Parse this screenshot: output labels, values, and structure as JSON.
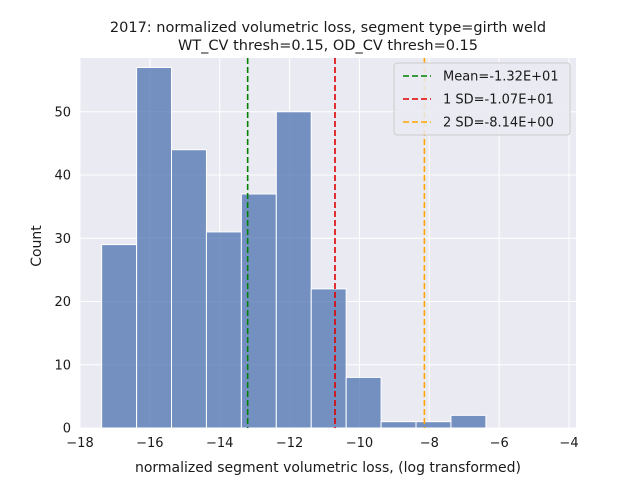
{
  "chart_data": {
    "type": "bar",
    "title_line1": "2017: normalized volumetric loss, segment type=girth weld",
    "title_line2": "WT_CV thresh=0.15, OD_CV thresh=0.15",
    "xlabel": "normalized segment volumetric loss, (log transformed)",
    "ylabel": "Count",
    "xlim": [
      -18,
      -3.8
    ],
    "ylim": [
      0,
      58.5
    ],
    "xticks": [
      -18,
      -16,
      -14,
      -12,
      -10,
      -8,
      -6,
      -4
    ],
    "xtick_labels": [
      "−18",
      "−16",
      "−14",
      "−12",
      "−10",
      "−8",
      "−6",
      "−4"
    ],
    "yticks": [
      0,
      10,
      20,
      30,
      40,
      50
    ],
    "ytick_labels": [
      "0",
      "10",
      "20",
      "30",
      "40",
      "50"
    ],
    "grid": true,
    "bins": [
      {
        "x0": -17.38,
        "x1": -16.38,
        "count": 29
      },
      {
        "x0": -16.38,
        "x1": -15.38,
        "count": 57
      },
      {
        "x0": -15.38,
        "x1": -14.38,
        "count": 44
      },
      {
        "x0": -14.38,
        "x1": -13.38,
        "count": 31
      },
      {
        "x0": -13.38,
        "x1": -12.38,
        "count": 37
      },
      {
        "x0": -12.38,
        "x1": -11.38,
        "count": 50
      },
      {
        "x0": -11.38,
        "x1": -10.38,
        "count": 22
      },
      {
        "x0": -10.38,
        "x1": -9.38,
        "count": 8
      },
      {
        "x0": -9.38,
        "x1": -8.38,
        "count": 1
      },
      {
        "x0": -8.38,
        "x1": -7.38,
        "count": 1
      },
      {
        "x0": -7.38,
        "x1": -6.38,
        "count": 2
      }
    ],
    "vlines": [
      {
        "label": "Mean=-1.32E+01",
        "x": -13.2,
        "color": "#008000"
      },
      {
        "label": "1 SD=-1.07E+01",
        "x": -10.7,
        "color": "#e00000"
      },
      {
        "label": "2 SD=-8.14E+00",
        "x": -8.14,
        "color": "#ffa500"
      }
    ],
    "legend_position": "top-right",
    "bar_color": "#4c72b0"
  }
}
